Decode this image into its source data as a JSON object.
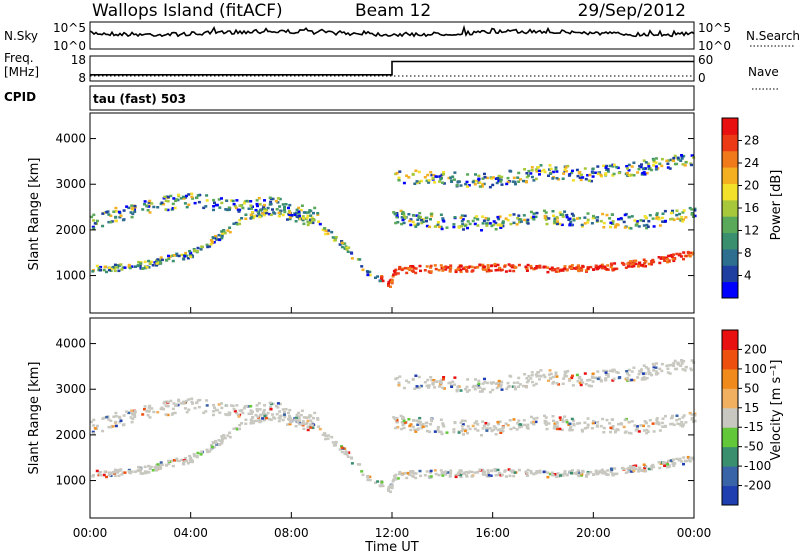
{
  "chart_data": {
    "type": "heatmap",
    "title": "Wallops Island (fitACF)",
    "beam": "Beam 12",
    "date": "29/Sep/2012",
    "xlabel": "Time UT",
    "x_ticks": [
      "00:00",
      "04:00",
      "08:00",
      "12:00",
      "16:00",
      "20:00",
      "00:00"
    ],
    "x_range_hours": [
      0,
      24
    ],
    "nsky_panel": {
      "label": "N.Sky",
      "right_label": "N.Search",
      "left_ticks": [
        "10^5",
        "10^0"
      ],
      "right_ticks": [
        "10^5",
        "10^0"
      ]
    },
    "freq_panel": {
      "label_line1": "Freq.",
      "label_line2": "[MHz]",
      "left_ticks": [
        "18",
        "8"
      ],
      "right_label": "Nave",
      "right_ticks": [
        "60",
        "0"
      ],
      "freq_step": [
        {
          "t": 0,
          "v": 10.5
        },
        {
          "t": 12,
          "v": 10.5
        },
        {
          "t": 12,
          "v": 15.8
        },
        {
          "t": 24,
          "v": 15.8
        }
      ]
    },
    "cpid_label": "CPID",
    "cpid_text": "tau (fast) 503",
    "power_panel": {
      "ylabel": "Slant Range [km]",
      "y_ticks": [
        1000,
        2000,
        3000,
        4000
      ],
      "y_range_km": [
        180,
        4560
      ],
      "colorbar_label": "Power [dB]",
      "colorbar_ticks": [
        "28",
        "24",
        "20",
        "16",
        "12",
        "8",
        "4"
      ],
      "colors": [
        "#0000ff",
        "#1f3fa0",
        "#2e6f8f",
        "#3a8f6f",
        "#5aa85a",
        "#a8c83c",
        "#f2e02a",
        "#f4b020",
        "#f07a1a",
        "#ec3a16",
        "#e81010"
      ]
    },
    "velocity_panel": {
      "ylabel": "Slant Range [km]",
      "y_ticks": [
        1000,
        2000,
        3000,
        4000
      ],
      "y_range_km": [
        180,
        4560
      ],
      "colorbar_label": "Velocity [m s⁻¹]",
      "colorbar_ticks": [
        "200",
        "100",
        "50",
        "15",
        "-15",
        "-50",
        "-100",
        "-200"
      ],
      "colors": [
        "#1f3fb0",
        "#3a64a8",
        "#3a8f6f",
        "#63c73a",
        "#c8c8c0",
        "#f0b060",
        "#f08a1a",
        "#ee5010",
        "#e81010"
      ]
    },
    "echo_bands": [
      {
        "name": "main-f-band",
        "t": [
          0,
          2,
          4,
          5,
          6,
          7,
          8,
          9,
          10,
          11,
          11.9,
          12.1,
          14,
          16,
          18,
          20,
          22,
          24
        ],
        "km": [
          1150,
          1250,
          1500,
          1850,
          2250,
          2450,
          2300,
          2150,
          1700,
          1100,
          850,
          1150,
          1180,
          1200,
          1180,
          1180,
          1300,
          1500
        ]
      },
      {
        "name": "upper-band",
        "t": [
          0,
          2,
          4,
          6,
          7,
          8,
          9
        ],
        "km": [
          2200,
          2500,
          2700,
          2500,
          2600,
          2500,
          2350
        ]
      },
      {
        "name": "late-band",
        "t": [
          12,
          14,
          16,
          18,
          20,
          22,
          24
        ],
        "km": [
          2300,
          2200,
          2150,
          2300,
          2250,
          2200,
          2400
        ]
      },
      {
        "name": "top-band",
        "t": [
          12,
          14,
          16,
          18,
          20,
          22,
          24
        ],
        "km": [
          3200,
          3150,
          3100,
          3300,
          3250,
          3400,
          3600
        ]
      }
    ]
  }
}
